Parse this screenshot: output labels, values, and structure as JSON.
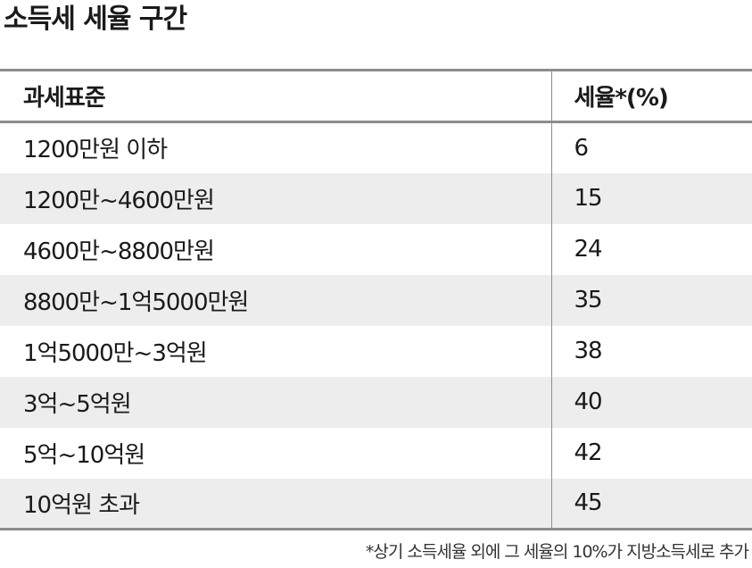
{
  "title": "소득세 세율 구간",
  "table": {
    "headers": [
      "과세표준",
      "세율*(%)"
    ],
    "rows": [
      [
        "1200만원 이하",
        "6"
      ],
      [
        "1200만~4600만원",
        "15"
      ],
      [
        "4600만~8800만원",
        "24"
      ],
      [
        "8800만~1억5000만원",
        "35"
      ],
      [
        "1억5000만~3억원",
        "38"
      ],
      [
        "3억~5억원",
        "40"
      ],
      [
        "5억~10억원",
        "42"
      ],
      [
        "10억원 초과",
        "45"
      ]
    ]
  },
  "footnote": "*상기 소득세율 외에 그 세율의 10%가 지방소득세로 추가"
}
